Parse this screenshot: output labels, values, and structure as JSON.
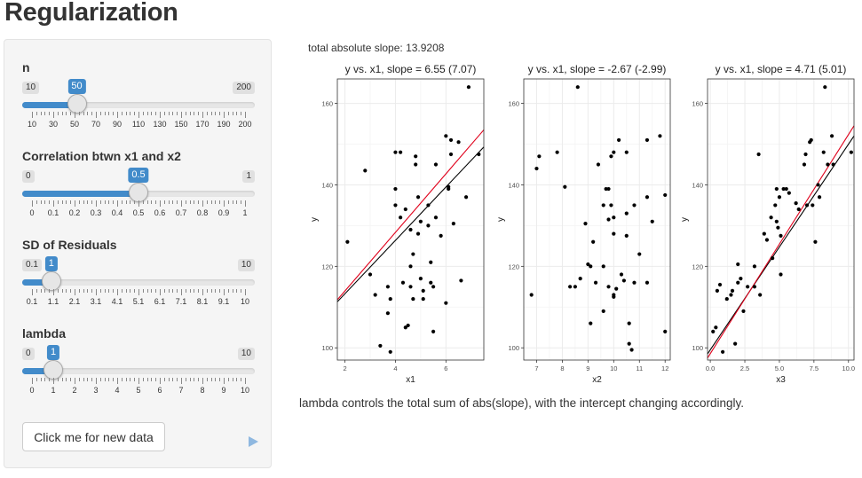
{
  "app": {
    "title": "Regularization"
  },
  "controls": [
    {
      "label": "n",
      "min": 10,
      "max": 200,
      "value": 50,
      "ticks": [
        "10",
        "30",
        "50",
        "70",
        "90",
        "110",
        "130",
        "150",
        "170",
        "190",
        "200"
      ]
    },
    {
      "label": "Correlation btwn x1 and x2",
      "min": 0,
      "max": 1,
      "value": 0.5,
      "ticks": [
        "0",
        "0.1",
        "0.2",
        "0.3",
        "0.4",
        "0.5",
        "0.6",
        "0.7",
        "0.8",
        "0.9",
        "1"
      ]
    },
    {
      "label": "SD of Residuals",
      "min": 0.1,
      "max": 10,
      "value": 1,
      "ticks": [
        "0.1",
        "1.1",
        "2.1",
        "3.1",
        "4.1",
        "5.1",
        "6.1",
        "7.1",
        "8.1",
        "9.1",
        "10"
      ]
    },
    {
      "label": "lambda",
      "min": 0,
      "max": 10,
      "value": 1,
      "ticks": [
        "0",
        "1",
        "2",
        "3",
        "4",
        "5",
        "6",
        "7",
        "8",
        "9",
        "10"
      ]
    }
  ],
  "button_label": "Click me for new data",
  "total_text": "total absolute slope: 13.9208",
  "footer_text": "lambda controls the total sum of abs(slope), with the intercept changing accordingly.",
  "colors": {
    "accent": "#428bca",
    "black_line": "#000000",
    "red_line": "#e0001b",
    "panel_grid": "#ebebeb"
  },
  "chart_data": [
    {
      "type": "scatter",
      "title": "y vs. x1, slope = 6.55 (7.07)",
      "xlabel": "x1",
      "ylabel": "y",
      "xlim": [
        1.7,
        7.5
      ],
      "ylim": [
        97,
        166
      ],
      "xticks": [
        2,
        4,
        6
      ],
      "yticks": [
        100,
        120,
        140,
        160
      ],
      "lines": [
        {
          "name": "black",
          "x": [
            1.7,
            7.5
          ],
          "y": [
            111.3,
            149.3
          ]
        },
        {
          "name": "red",
          "x": [
            1.7,
            7.5
          ],
          "y": [
            111.8,
            153.5
          ]
        }
      ],
      "points": [
        [
          2.1,
          126
        ],
        [
          2.8,
          143.5
        ],
        [
          3.0,
          118
        ],
        [
          3.2,
          113
        ],
        [
          3.4,
          100.5
        ],
        [
          3.7,
          108.5
        ],
        [
          3.8,
          99
        ],
        [
          3.8,
          112
        ],
        [
          3.7,
          115
        ],
        [
          4.0,
          148
        ],
        [
          4.2,
          148
        ],
        [
          4.0,
          139
        ],
        [
          4.0,
          135
        ],
        [
          4.2,
          132
        ],
        [
          4.4,
          134
        ],
        [
          4.3,
          116
        ],
        [
          4.5,
          105.5
        ],
        [
          4.4,
          105
        ],
        [
          4.6,
          120
        ],
        [
          4.6,
          129
        ],
        [
          4.7,
          123
        ],
        [
          4.6,
          115
        ],
        [
          4.7,
          112
        ],
        [
          4.8,
          145
        ],
        [
          4.8,
          147
        ],
        [
          4.9,
          137
        ],
        [
          5.0,
          131
        ],
        [
          4.9,
          128
        ],
        [
          5.0,
          117
        ],
        [
          5.1,
          114
        ],
        [
          5.1,
          112
        ],
        [
          5.3,
          135
        ],
        [
          5.3,
          130
        ],
        [
          5.4,
          121
        ],
        [
          5.4,
          116
        ],
        [
          5.5,
          115
        ],
        [
          5.5,
          104
        ],
        [
          5.6,
          145
        ],
        [
          5.6,
          132
        ],
        [
          5.8,
          127.5
        ],
        [
          6.0,
          152
        ],
        [
          6.1,
          139
        ],
        [
          6.1,
          139.5
        ],
        [
          6.2,
          147.5
        ],
        [
          6.2,
          151
        ],
        [
          6.3,
          130.5
        ],
        [
          6.5,
          150.5
        ],
        [
          6.6,
          116.5
        ],
        [
          6.8,
          137
        ],
        [
          6.9,
          164
        ],
        [
          7.3,
          147.5
        ],
        [
          6.0,
          111
        ]
      ]
    },
    {
      "type": "scatter",
      "title": "y vs. x1, slope = -2.67 (-2.99)",
      "xlabel": "x2",
      "ylabel": "y",
      "xlim": [
        6.5,
        12.2
      ],
      "ylim": [
        97,
        166
      ],
      "xticks": [
        7,
        8,
        9,
        10,
        11,
        12
      ],
      "yticks": [
        100,
        120,
        140,
        160
      ],
      "lines": [],
      "points": [
        [
          6.8,
          113
        ],
        [
          7.0,
          144
        ],
        [
          7.1,
          147
        ],
        [
          7.8,
          148
        ],
        [
          8.1,
          139.5
        ],
        [
          8.3,
          115
        ],
        [
          8.5,
          115
        ],
        [
          8.6,
          164
        ],
        [
          8.7,
          117
        ],
        [
          8.9,
          130.5
        ],
        [
          9.0,
          120.5
        ],
        [
          9.1,
          120
        ],
        [
          9.1,
          106
        ],
        [
          9.2,
          126
        ],
        [
          9.3,
          116
        ],
        [
          9.4,
          145
        ],
        [
          9.6,
          135
        ],
        [
          9.6,
          120
        ],
        [
          9.6,
          109
        ],
        [
          9.7,
          139
        ],
        [
          9.8,
          131.5
        ],
        [
          9.8,
          115
        ],
        [
          9.8,
          139
        ],
        [
          9.9,
          147
        ],
        [
          9.9,
          135
        ],
        [
          10.0,
          148
        ],
        [
          10.0,
          132
        ],
        [
          10.0,
          128
        ],
        [
          10.0,
          113
        ],
        [
          10.0,
          112.5
        ],
        [
          10.1,
          114.5
        ],
        [
          10.2,
          151
        ],
        [
          10.3,
          118
        ],
        [
          10.4,
          116.5
        ],
        [
          10.5,
          148
        ],
        [
          10.5,
          133
        ],
        [
          10.5,
          127.5
        ],
        [
          10.6,
          106
        ],
        [
          10.6,
          101
        ],
        [
          10.7,
          99.5
        ],
        [
          10.8,
          135
        ],
        [
          10.8,
          116
        ],
        [
          11.0,
          123
        ],
        [
          11.3,
          151
        ],
        [
          11.3,
          137
        ],
        [
          11.3,
          116
        ],
        [
          11.5,
          131
        ],
        [
          11.8,
          152
        ],
        [
          12.0,
          137.5
        ],
        [
          12.0,
          104
        ]
      ]
    },
    {
      "type": "scatter",
      "title": "y vs. x1, slope = 4.71 (5.01)",
      "xlabel": "x3",
      "ylabel": "y",
      "xlim": [
        -0.2,
        10.4
      ],
      "ylim": [
        97,
        166
      ],
      "xticks": [
        0.0,
        2.5,
        5.0,
        7.5,
        10.0
      ],
      "yticks": [
        100,
        120,
        140,
        160
      ],
      "xticklabels": [
        "0.0",
        "2.5",
        "5.0",
        "7.5",
        "10.0"
      ],
      "lines": [
        {
          "name": "black",
          "x": [
            -0.2,
            10.4
          ],
          "y": [
            98.5,
            152
          ]
        },
        {
          "name": "red",
          "x": [
            -0.2,
            10.4
          ],
          "y": [
            97.5,
            154.5
          ]
        }
      ],
      "points": [
        [
          0.2,
          104
        ],
        [
          0.4,
          105
        ],
        [
          0.5,
          114
        ],
        [
          0.7,
          115.5
        ],
        [
          0.9,
          99
        ],
        [
          1.2,
          112
        ],
        [
          1.5,
          113
        ],
        [
          1.6,
          114
        ],
        [
          1.8,
          101
        ],
        [
          2.0,
          116
        ],
        [
          2.0,
          120.5
        ],
        [
          2.2,
          117
        ],
        [
          2.4,
          109
        ],
        [
          2.7,
          115
        ],
        [
          3.2,
          115
        ],
        [
          3.2,
          120
        ],
        [
          3.5,
          147.5
        ],
        [
          3.6,
          113
        ],
        [
          3.9,
          128
        ],
        [
          4.1,
          126.5
        ],
        [
          4.4,
          132
        ],
        [
          4.5,
          122
        ],
        [
          4.7,
          135
        ],
        [
          4.8,
          139
        ],
        [
          4.8,
          131
        ],
        [
          4.9,
          129.5
        ],
        [
          5.0,
          137
        ],
        [
          5.1,
          127.5
        ],
        [
          5.1,
          118
        ],
        [
          5.3,
          139
        ],
        [
          5.5,
          139
        ],
        [
          5.7,
          138
        ],
        [
          6.2,
          135.5
        ],
        [
          6.4,
          134
        ],
        [
          6.8,
          145
        ],
        [
          6.9,
          147.5
        ],
        [
          7.0,
          135
        ],
        [
          7.2,
          150.5
        ],
        [
          7.3,
          151
        ],
        [
          7.4,
          135
        ],
        [
          7.6,
          126
        ],
        [
          7.8,
          140
        ],
        [
          7.9,
          137
        ],
        [
          8.2,
          148
        ],
        [
          8.3,
          164
        ],
        [
          8.5,
          145
        ],
        [
          8.8,
          152
        ],
        [
          8.9,
          145
        ],
        [
          10.2,
          148
        ]
      ]
    }
  ]
}
